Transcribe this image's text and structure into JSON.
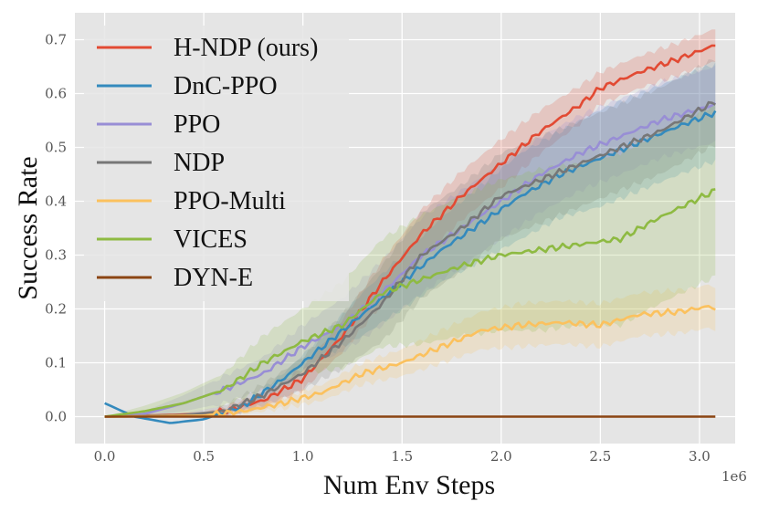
{
  "chart_data": {
    "type": "line",
    "title": "",
    "xlabel": "Num Env Steps",
    "ylabel": "Success Rate",
    "x_offset_label": "1e6",
    "xlim": [
      -0.15,
      3.18
    ],
    "ylim": [
      -0.05,
      0.75
    ],
    "xticks": [
      0.0,
      0.5,
      1.0,
      1.5,
      2.0,
      2.5,
      3.0
    ],
    "xtick_labels": [
      "0.0",
      "0.5",
      "1.0",
      "1.5",
      "2.0",
      "2.5",
      "3.0"
    ],
    "yticks": [
      0.0,
      0.1,
      0.2,
      0.3,
      0.4,
      0.5,
      0.6,
      0.7
    ],
    "ytick_labels": [
      "0.0",
      "0.1",
      "0.2",
      "0.3",
      "0.4",
      "0.5",
      "0.6",
      "0.7"
    ],
    "grid": true,
    "legend_position": "top-left",
    "series": [
      {
        "name": "H-NDP (ours)",
        "color": "#E24A33",
        "x": [
          0,
          0.5,
          0.6,
          0.8,
          1.0,
          1.2,
          1.4,
          1.6,
          1.8,
          2.0,
          2.2,
          2.4,
          2.5,
          2.7,
          2.9,
          3.08
        ],
        "y": [
          0,
          0.005,
          0.01,
          0.03,
          0.07,
          0.15,
          0.25,
          0.34,
          0.41,
          0.47,
          0.53,
          0.58,
          0.61,
          0.64,
          0.665,
          0.69
        ],
        "band": [
          0,
          0.004,
          0.007,
          0.015,
          0.02,
          0.03,
          0.04,
          0.045,
          0.045,
          0.045,
          0.04,
          0.035,
          0.03,
          0.03,
          0.03,
          0.03
        ]
      },
      {
        "name": "DnC-PPO",
        "color": "#348ABD",
        "x": [
          0,
          0.15,
          0.33,
          0.5,
          0.7,
          0.9,
          1.1,
          1.3,
          1.5,
          1.7,
          1.9,
          2.1,
          2.3,
          2.5,
          2.7,
          2.9,
          3.08
        ],
        "y": [
          0.025,
          0.0,
          -0.012,
          -0.005,
          0.02,
          0.07,
          0.13,
          0.19,
          0.25,
          0.31,
          0.36,
          0.41,
          0.45,
          0.48,
          0.51,
          0.54,
          0.565
        ],
        "band": [
          0,
          0,
          0,
          0,
          0.005,
          0.01,
          0.02,
          0.04,
          0.05,
          0.06,
          0.07,
          0.08,
          0.08,
          0.09,
          0.09,
          0.09,
          0.09
        ]
      },
      {
        "name": "PPO",
        "color": "#988ED5",
        "x": [
          0,
          0.2,
          0.4,
          0.6,
          0.8,
          1.0,
          1.2,
          1.4,
          1.6,
          1.8,
          2.0,
          2.2,
          2.4,
          2.6,
          2.8,
          3.08
        ],
        "y": [
          0,
          0.005,
          0.025,
          0.05,
          0.08,
          0.13,
          0.17,
          0.23,
          0.3,
          0.35,
          0.4,
          0.45,
          0.49,
          0.52,
          0.55,
          0.58
        ],
        "band": [
          0,
          0.005,
          0.015,
          0.025,
          0.03,
          0.04,
          0.05,
          0.06,
          0.07,
          0.07,
          0.07,
          0.07,
          0.07,
          0.07,
          0.07,
          0.07
        ]
      },
      {
        "name": "NDP",
        "color": "#777777",
        "x": [
          0,
          0.4,
          0.6,
          0.8,
          1.0,
          1.2,
          1.4,
          1.6,
          1.8,
          2.0,
          2.2,
          2.4,
          2.6,
          2.8,
          3.08
        ],
        "y": [
          0,
          0.003,
          0.01,
          0.04,
          0.08,
          0.14,
          0.21,
          0.3,
          0.35,
          0.41,
          0.44,
          0.47,
          0.5,
          0.53,
          0.585
        ],
        "band": [
          0,
          0.003,
          0.01,
          0.02,
          0.03,
          0.05,
          0.07,
          0.08,
          0.08,
          0.08,
          0.08,
          0.08,
          0.08,
          0.08,
          0.08
        ]
      },
      {
        "name": "PPO-Multi",
        "color": "#FBC15E",
        "x": [
          0,
          0.5,
          0.7,
          0.9,
          1.1,
          1.3,
          1.5,
          1.7,
          1.9,
          2.1,
          2.3,
          2.5,
          2.7,
          2.9,
          3.05,
          3.08
        ],
        "y": [
          0,
          0.002,
          0.01,
          0.025,
          0.045,
          0.08,
          0.1,
          0.13,
          0.16,
          0.17,
          0.175,
          0.17,
          0.19,
          0.195,
          0.205,
          0.2
        ],
        "band": [
          0,
          0.002,
          0.005,
          0.01,
          0.015,
          0.02,
          0.025,
          0.03,
          0.035,
          0.04,
          0.04,
          0.04,
          0.04,
          0.04,
          0.04,
          0.04
        ]
      },
      {
        "name": "VICES",
        "color": "#8EBA42",
        "x": [
          0,
          0.2,
          0.4,
          0.6,
          0.8,
          1.0,
          1.2,
          1.4,
          1.6,
          1.8,
          2.0,
          2.2,
          2.4,
          2.6,
          2.8,
          3.08
        ],
        "y": [
          0,
          0.01,
          0.025,
          0.05,
          0.1,
          0.14,
          0.17,
          0.23,
          0.255,
          0.28,
          0.3,
          0.31,
          0.32,
          0.33,
          0.37,
          0.42
        ],
        "band": [
          0,
          0.01,
          0.02,
          0.03,
          0.05,
          0.06,
          0.08,
          0.1,
          0.12,
          0.13,
          0.14,
          0.15,
          0.15,
          0.16,
          0.16,
          0.16
        ]
      },
      {
        "name": "DYN-E",
        "color": "#8B4513",
        "x": [
          0,
          3.08
        ],
        "y": [
          0,
          0
        ],
        "band": [
          0,
          0
        ]
      }
    ]
  }
}
